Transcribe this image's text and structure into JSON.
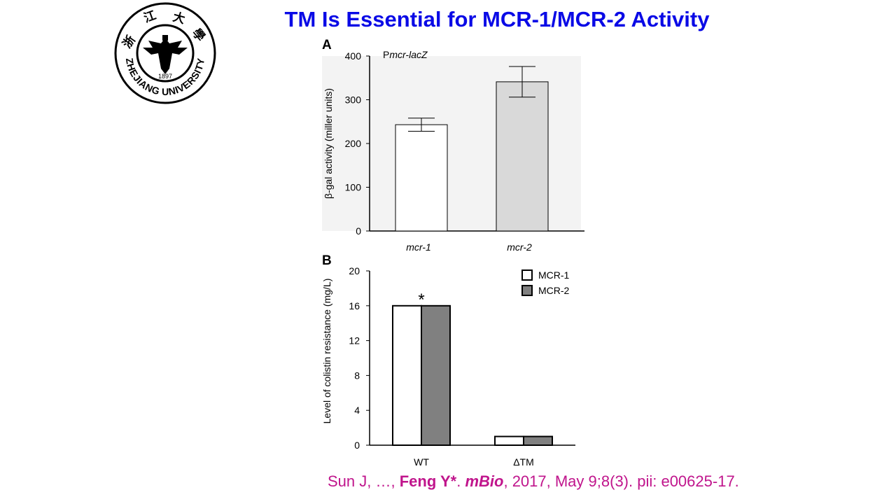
{
  "slide": {
    "title": "TM Is Essential for MCR-1/MCR-2 Activity",
    "logo": {
      "text_top": "浙 江 大 學",
      "year": "1897",
      "text_bottom": "ZHEJIANG UNIVERSITY"
    },
    "citation": {
      "authors": "Sun J, …, ",
      "corresponding": "Feng Y*",
      "sep": ". ",
      "journal": "mBio",
      "details": ", 2017, May 9;8(3). pii: e00625-17."
    }
  },
  "chart_data": [
    {
      "panel": "A",
      "type": "bar",
      "annotation": "Pmcr-lacZ",
      "annotation_prefix": "P",
      "annotation_italic": "mcr-lacZ",
      "ylabel": "β-gal activity (miller units)",
      "ylim": [
        0,
        400
      ],
      "yticks": [
        0,
        100,
        200,
        300,
        400
      ],
      "categories": [
        "mcr-1",
        "mcr-2"
      ],
      "values": [
        243,
        341
      ],
      "errors": [
        15,
        35
      ],
      "colors": [
        "#ffffff",
        "#d9d9d9"
      ]
    },
    {
      "panel": "B",
      "type": "bar",
      "ylabel": "Level of colistin resistance (mg/L)",
      "ylim": [
        0,
        20
      ],
      "yticks": [
        0,
        4,
        8,
        12,
        16,
        20
      ],
      "categories": [
        "WT",
        "ΔTM"
      ],
      "series": [
        {
          "name": "MCR-1",
          "values": [
            16,
            1
          ],
          "color": "#ffffff"
        },
        {
          "name": "MCR-2",
          "values": [
            16,
            1
          ],
          "color": "#808080"
        }
      ],
      "annotation": "*",
      "legend": "top-right"
    }
  ]
}
